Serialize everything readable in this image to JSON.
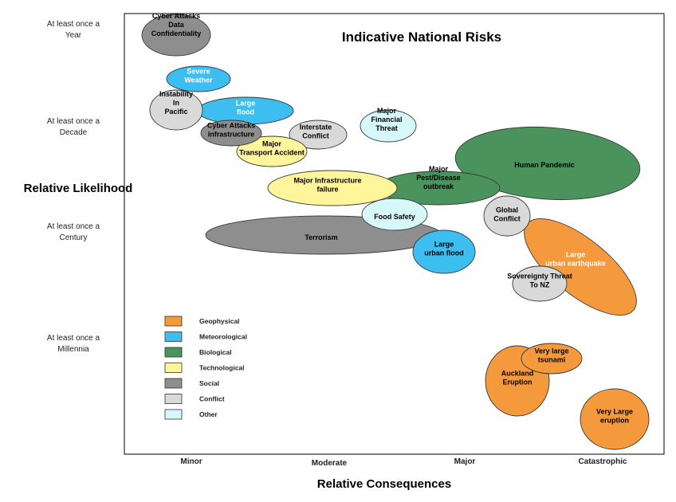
{
  "title": "Indicative National Risks",
  "x_axis": {
    "title": "Relative Consequences",
    "ticks": [
      "Minor",
      "Moderate",
      "Major",
      "Catastrophic"
    ]
  },
  "y_axis": {
    "title": "Relative Likelihood",
    "ticks": [
      [
        "At least once a",
        "Year"
      ],
      [
        "At least once a",
        "Decade"
      ],
      [
        "At least once a",
        "Century"
      ],
      [
        "At least once a",
        "Millennia"
      ]
    ]
  },
  "colors": {
    "Geophysical": "#f59a3c",
    "Meteorological": "#3cbef0",
    "Biological": "#4a935c",
    "Technological": "#fff59a",
    "Social": "#8e8e8e",
    "Conflict": "#d9d9d9",
    "Other": "#d7f8fa"
  },
  "legend": [
    "Geophysical",
    "Meteorological",
    "Biological",
    "Technological",
    "Social",
    "Conflict",
    "Other"
  ],
  "risks": [
    {
      "label": [
        "Human Pandemic"
      ],
      "category": "Biological",
      "text_color": "#000"
    },
    {
      "label": [
        "Major",
        "Pest/Disease",
        "outbreak"
      ],
      "category": "Biological",
      "text_color": "#000"
    },
    {
      "label": [
        "Terrorism"
      ],
      "category": "Social",
      "text_color": "#000"
    },
    {
      "label": [
        "Major Infrastructure",
        "failure"
      ],
      "category": "Technological",
      "text_color": "#000"
    },
    {
      "label": [
        "Food Safety"
      ],
      "category": "Other",
      "text_color": "#000"
    },
    {
      "label": [
        "Large",
        "urban earthquake"
      ],
      "category": "Geophysical",
      "text_color": "#fff"
    },
    {
      "label": [
        "Global",
        "Conflict"
      ],
      "category": "Conflict",
      "text_color": "#000"
    },
    {
      "label": [
        "Sovereignty Threat",
        "To NZ"
      ],
      "category": "Conflict",
      "text_color": "#000"
    },
    {
      "label": [
        "Large",
        "urban flood"
      ],
      "category": "Meteorological",
      "text_color": "#000"
    },
    {
      "label": [
        "Major",
        "Financial",
        "Threat"
      ],
      "category": "Other",
      "text_color": "#000"
    },
    {
      "label": [
        "Interstate",
        "Conflict"
      ],
      "category": "Conflict",
      "text_color": "#000"
    },
    {
      "label": [
        "Major",
        "Transport Accident"
      ],
      "category": "Technological",
      "text_color": "#000"
    },
    {
      "label": [
        "Large",
        "flood"
      ],
      "category": "Meteorological",
      "text_color": "#fff"
    },
    {
      "label": [
        "Cyber Attacks",
        "infrastructure"
      ],
      "category": "Social",
      "text_color": "#000"
    },
    {
      "label": [
        "Instability",
        "In",
        "Pacific"
      ],
      "category": "Conflict",
      "text_color": "#000"
    },
    {
      "label": [
        "Severe",
        "Weather"
      ],
      "category": "Meteorological",
      "text_color": "#fff"
    },
    {
      "label": [
        "Cyber Attacks",
        "Data",
        "Confidentiality"
      ],
      "category": "Social",
      "text_color": "#000"
    },
    {
      "label": [
        "Auckland",
        "Eruption"
      ],
      "category": "Geophysical",
      "text_color": "#000"
    },
    {
      "label": [
        "Very large",
        "tsunami"
      ],
      "category": "Geophysical",
      "text_color": "#000"
    },
    {
      "label": [
        "Very Large",
        "eruption"
      ],
      "category": "Geophysical",
      "text_color": "#000"
    }
  ]
}
